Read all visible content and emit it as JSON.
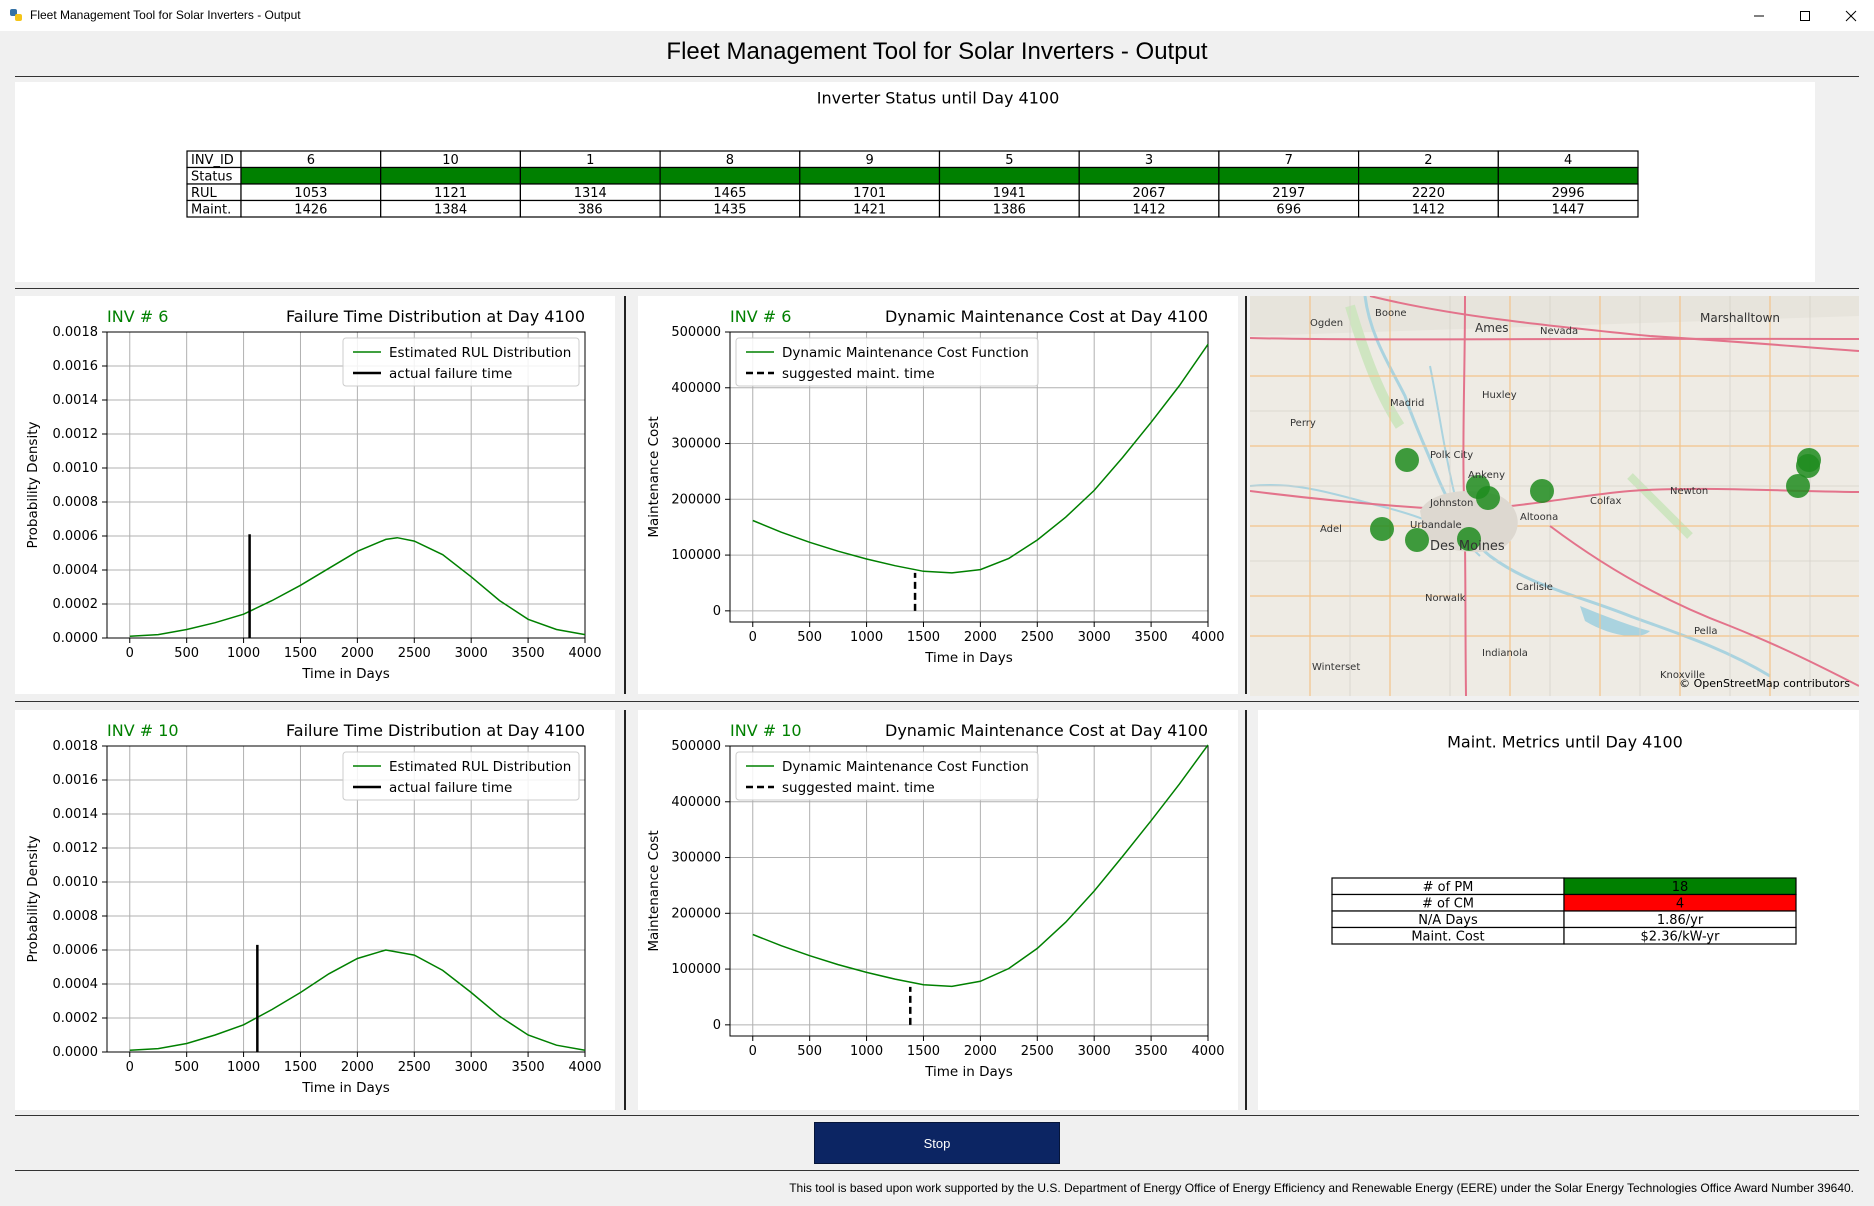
{
  "window": {
    "title": "Fleet Management Tool for Solar Inverters - Output"
  },
  "header": {
    "title": "Fleet Management Tool for Solar Inverters - Output"
  },
  "status_table": {
    "title": "Inverter Status until Day 4100",
    "row_labels": [
      "INV_ID",
      "Status",
      "RUL",
      "Maint."
    ],
    "columns": [
      {
        "id": "6",
        "rul": "1053",
        "maint": "1426",
        "status": "#008000"
      },
      {
        "id": "10",
        "rul": "1121",
        "maint": "1384",
        "status": "#008000"
      },
      {
        "id": "1",
        "rul": "1314",
        "maint": "386",
        "status": "#008000"
      },
      {
        "id": "8",
        "rul": "1465",
        "maint": "1435",
        "status": "#008000"
      },
      {
        "id": "9",
        "rul": "1701",
        "maint": "1421",
        "status": "#008000"
      },
      {
        "id": "5",
        "rul": "1941",
        "maint": "1386",
        "status": "#008000"
      },
      {
        "id": "3",
        "rul": "2067",
        "maint": "1412",
        "status": "#008000"
      },
      {
        "id": "7",
        "rul": "2197",
        "maint": "696",
        "status": "#008000"
      },
      {
        "id": "2",
        "rul": "2220",
        "maint": "1412",
        "status": "#008000"
      },
      {
        "id": "4",
        "rul": "2996",
        "maint": "1447",
        "status": "#008000"
      }
    ]
  },
  "plots": {
    "failure": [
      {
        "inv_label": "INV # 6",
        "title": "Failure Time Distribution at Day 4100",
        "xlabel": "Time in Days",
        "ylabel": "Probability Density",
        "legend": [
          "Estimated RUL Distribution",
          "actual failure time"
        ]
      },
      {
        "inv_label": "INV # 10",
        "title": "Failure Time Distribution at Day 4100",
        "xlabel": "Time in Days",
        "ylabel": "Probability Density",
        "legend": [
          "Estimated RUL Distribution",
          "actual failure time"
        ]
      }
    ],
    "cost": [
      {
        "inv_label": "INV # 6",
        "title": "Dynamic Maintenance Cost at Day 4100",
        "xlabel": "Time in Days",
        "ylabel": "Maintenance Cost",
        "legend": [
          "Dynamic Maintenance Cost Function",
          "suggested maint. time"
        ]
      },
      {
        "inv_label": "INV # 10",
        "title": "Dynamic Maintenance Cost at Day 4100",
        "xlabel": "Time in Days",
        "ylabel": "Maintenance Cost",
        "legend": [
          "Dynamic Maintenance Cost Function",
          "suggested maint. time"
        ]
      }
    ]
  },
  "chart_data": [
    {
      "type": "line",
      "title": "Failure Time Distribution at Day 4100",
      "inv": "INV # 6",
      "xlabel": "Time in Days",
      "ylabel": "Probability Density",
      "xlim": [
        -200,
        4000
      ],
      "ylim": [
        0,
        0.0018
      ],
      "xticks": [
        0,
        500,
        1000,
        1500,
        2000,
        2500,
        3000,
        3500,
        4000
      ],
      "yticks": [
        0,
        0.0002,
        0.0004,
        0.0006,
        0.0008,
        0.001,
        0.0012,
        0.0014,
        0.0016,
        0.0018
      ],
      "ytick_labels": [
        "0.0000",
        "0.0002",
        "0.0004",
        "0.0006",
        "0.0008",
        "0.0010",
        "0.0012",
        "0.0014",
        "0.0016",
        "0.0018"
      ],
      "series": [
        {
          "name": "Estimated RUL Distribution",
          "color": "#008000",
          "x": [
            0,
            250,
            500,
            750,
            1000,
            1250,
            1500,
            1750,
            2000,
            2250,
            2350,
            2500,
            2750,
            3000,
            3250,
            3500,
            3750,
            4000
          ],
          "y": [
            1e-05,
            2e-05,
            5e-05,
            9e-05,
            0.00014,
            0.00022,
            0.00031,
            0.00041,
            0.00051,
            0.00058,
            0.00059,
            0.00057,
            0.00049,
            0.00036,
            0.00022,
            0.00011,
            5e-05,
            2e-05
          ]
        }
      ],
      "vline": {
        "name": "actual failure time",
        "x": 1053,
        "y": 0.00061,
        "color": "#000000"
      },
      "legend_position": "upper-right",
      "grid": true
    },
    {
      "type": "line",
      "title": "Failure Time Distribution at Day 4100",
      "inv": "INV # 10",
      "xlabel": "Time in Days",
      "ylabel": "Probability Density",
      "xlim": [
        -200,
        4000
      ],
      "ylim": [
        0,
        0.0018
      ],
      "xticks": [
        0,
        500,
        1000,
        1500,
        2000,
        2500,
        3000,
        3500,
        4000
      ],
      "yticks": [
        0,
        0.0002,
        0.0004,
        0.0006,
        0.0008,
        0.001,
        0.0012,
        0.0014,
        0.0016,
        0.0018
      ],
      "ytick_labels": [
        "0.0000",
        "0.0002",
        "0.0004",
        "0.0006",
        "0.0008",
        "0.0010",
        "0.0012",
        "0.0014",
        "0.0016",
        "0.0018"
      ],
      "series": [
        {
          "name": "Estimated RUL Distribution",
          "color": "#008000",
          "x": [
            0,
            250,
            500,
            750,
            1000,
            1250,
            1500,
            1750,
            2000,
            2250,
            2500,
            2750,
            3000,
            3250,
            3500,
            3750,
            4000
          ],
          "y": [
            1e-05,
            2e-05,
            5e-05,
            0.0001,
            0.00016,
            0.00025,
            0.00035,
            0.00046,
            0.00055,
            0.0006,
            0.00057,
            0.00048,
            0.00035,
            0.00021,
            0.0001,
            4e-05,
            1e-05
          ]
        }
      ],
      "vline": {
        "name": "actual failure time",
        "x": 1121,
        "y": 0.00063,
        "color": "#000000"
      },
      "legend_position": "upper-right",
      "grid": true
    },
    {
      "type": "line",
      "title": "Dynamic Maintenance Cost at Day 4100",
      "inv": "INV # 6",
      "xlabel": "Time in Days",
      "ylabel": "Maintenance Cost",
      "xlim": [
        -200,
        4000
      ],
      "ylim": [
        -20000,
        500000
      ],
      "xticks": [
        0,
        500,
        1000,
        1500,
        2000,
        2500,
        3000,
        3500,
        4000
      ],
      "yticks": [
        0,
        100000,
        200000,
        300000,
        400000,
        500000
      ],
      "ytick_labels": [
        "0",
        "100000",
        "200000",
        "300000",
        "400000",
        "500000"
      ],
      "series": [
        {
          "name": "Dynamic Maintenance Cost Function",
          "color": "#008000",
          "x": [
            0,
            250,
            500,
            750,
            1000,
            1250,
            1500,
            1750,
            2000,
            2250,
            2500,
            2750,
            3000,
            3250,
            3500,
            3750,
            4000
          ],
          "y": [
            162000,
            141000,
            123000,
            107000,
            93000,
            81000,
            71000,
            68000,
            74000,
            94000,
            127000,
            168000,
            216000,
            275000,
            338000,
            404000,
            478000
          ]
        }
      ],
      "vline": {
        "name": "suggested maint. time",
        "x": 1426,
        "y": 68000,
        "color": "#000000",
        "dashed": true
      },
      "legend_position": "upper-left",
      "grid": true
    },
    {
      "type": "line",
      "title": "Dynamic Maintenance Cost at Day 4100",
      "inv": "INV # 10",
      "xlabel": "Time in Days",
      "ylabel": "Maintenance Cost",
      "xlim": [
        -200,
        4000
      ],
      "ylim": [
        -20000,
        500000
      ],
      "xticks": [
        0,
        500,
        1000,
        1500,
        2000,
        2500,
        3000,
        3500,
        4000
      ],
      "yticks": [
        0,
        100000,
        200000,
        300000,
        400000,
        500000
      ],
      "ytick_labels": [
        "0",
        "100000",
        "200000",
        "300000",
        "400000",
        "500000"
      ],
      "series": [
        {
          "name": "Dynamic Maintenance Cost Function",
          "color": "#008000",
          "x": [
            0,
            250,
            500,
            750,
            1000,
            1250,
            1500,
            1750,
            2000,
            2250,
            2500,
            2750,
            3000,
            3250,
            3500,
            3750,
            4000
          ],
          "y": [
            162000,
            142000,
            124000,
            108000,
            94000,
            82000,
            72000,
            69000,
            78000,
            101000,
            137000,
            184000,
            240000,
            302000,
            366000,
            432000,
            502000
          ]
        }
      ],
      "vline": {
        "name": "suggested maint. time",
        "x": 1384,
        "y": 68000,
        "color": "#000000",
        "dashed": true
      },
      "legend_position": "upper-left",
      "grid": true
    }
  ],
  "map": {
    "attribution": "© OpenStreetMap contributors",
    "places": [
      "Ogden",
      "Boone",
      "Ames",
      "Nevada",
      "Marshalltown",
      "Madrid",
      "Huxley",
      "Perry",
      "Polk City",
      "Ankeny",
      "Johnston",
      "Newton",
      "Colfax",
      "Adel",
      "Urbandale",
      "Altoona",
      "Des Moines",
      "Carlisle",
      "Norwalk",
      "Pella",
      "Indianola",
      "Winterset",
      "Knoxville"
    ],
    "marker_color": "#1e8c1e"
  },
  "metrics": {
    "title": "Maint. Metrics until Day 4100",
    "rows": [
      {
        "label": "# of PM",
        "value": "18",
        "color": "#008000"
      },
      {
        "label": "# of CM",
        "value": "4",
        "color": "#ff0000"
      },
      {
        "label": "N/A Days",
        "value": "1.86/yr",
        "color": "#ffffff"
      },
      {
        "label": "Maint. Cost",
        "value": "$2.36/kW-yr",
        "color": "#ffffff"
      }
    ]
  },
  "controls": {
    "stop_label": "Stop"
  },
  "footer": {
    "text": "This tool is based upon work supported by the U.S. Department of Energy Office of Energy Efficiency and Renewable Energy (EERE) under the Solar Energy Technologies Office Award Number 39640."
  }
}
